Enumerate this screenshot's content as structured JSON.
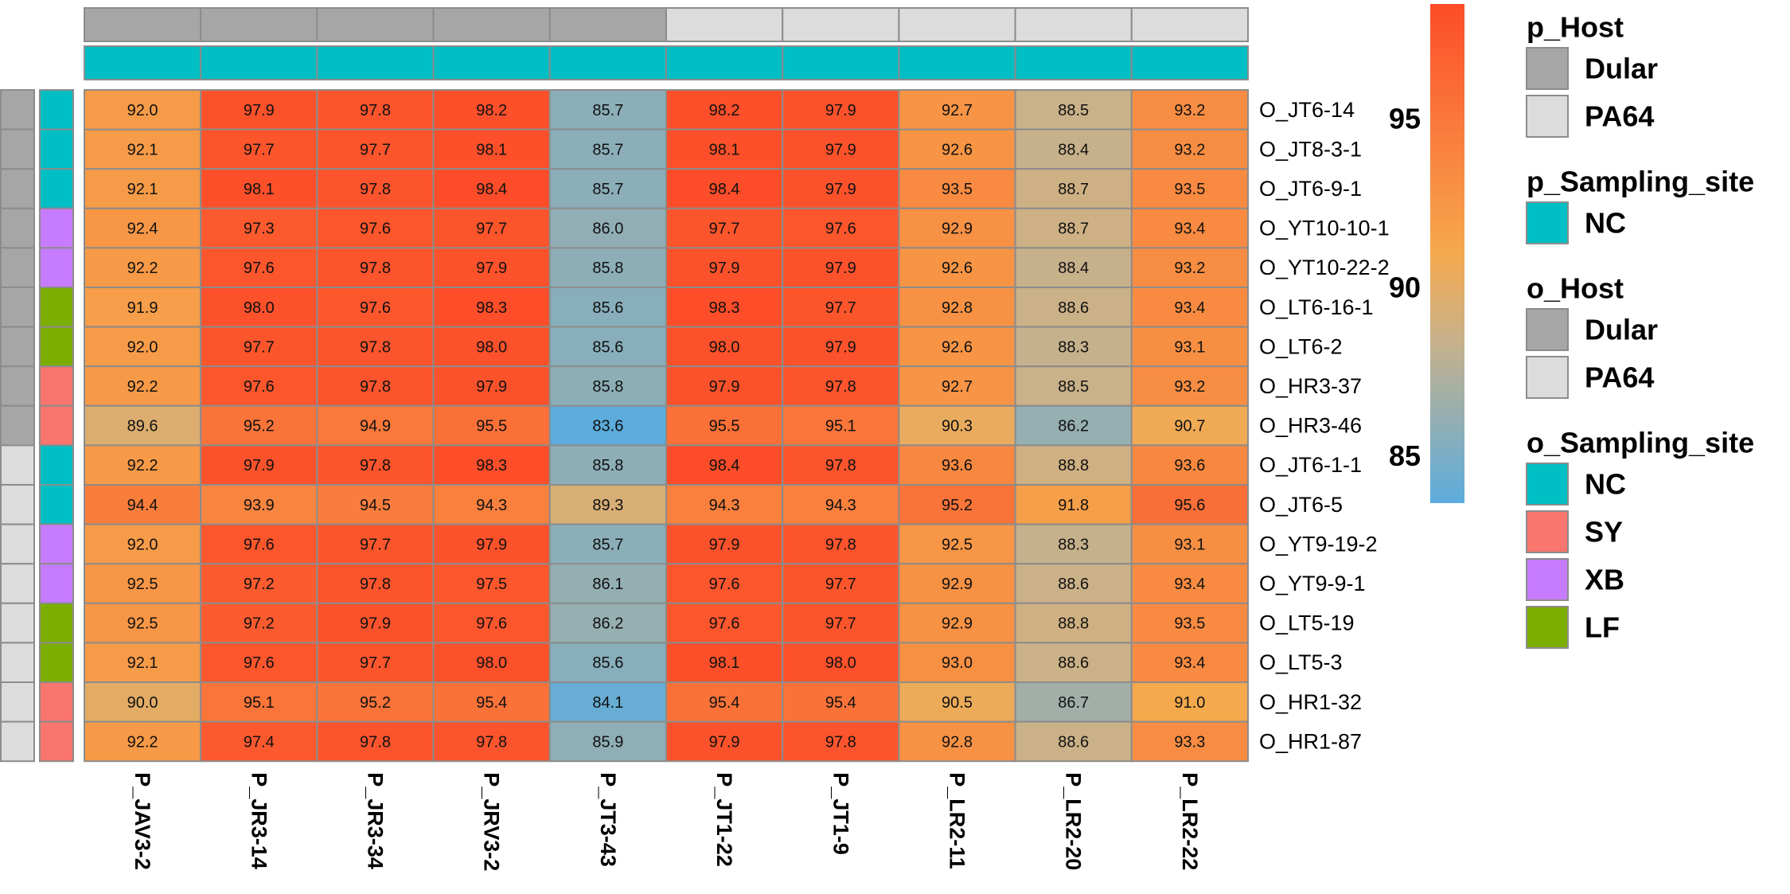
{
  "chart_data": {
    "type": "heatmap",
    "columns": [
      "P_JAV3-2",
      "P_JR3-14",
      "P_JR3-34",
      "P_JRV3-2",
      "P_JT3-43",
      "P_JT1-22",
      "P_JT1-9",
      "P_LR2-11",
      "P_LR2-20",
      "P_LR2-22"
    ],
    "rows": [
      "O_JT6-14",
      "O_JT8-3-1",
      "O_JT6-9-1",
      "O_YT10-10-1",
      "O_YT10-22-2",
      "O_LT6-16-1",
      "O_LT6-2",
      "O_HR3-37",
      "O_HR3-46",
      "O_JT6-1-1",
      "O_JT6-5",
      "O_YT9-19-2",
      "O_YT9-9-1",
      "O_LT5-19",
      "O_LT5-3",
      "O_HR1-32",
      "O_HR1-87"
    ],
    "values": [
      [
        92.0,
        97.9,
        97.8,
        98.2,
        85.7,
        98.2,
        97.9,
        92.7,
        88.5,
        93.2
      ],
      [
        92.1,
        97.7,
        97.7,
        98.1,
        85.7,
        98.1,
        97.9,
        92.6,
        88.4,
        93.2
      ],
      [
        92.1,
        98.1,
        97.8,
        98.4,
        85.7,
        98.4,
        97.9,
        93.5,
        88.7,
        93.5
      ],
      [
        92.4,
        97.3,
        97.6,
        97.7,
        86.0,
        97.7,
        97.6,
        92.9,
        88.7,
        93.4
      ],
      [
        92.2,
        97.6,
        97.8,
        97.9,
        85.8,
        97.9,
        97.9,
        92.6,
        88.4,
        93.2
      ],
      [
        91.9,
        98.0,
        97.6,
        98.3,
        85.6,
        98.3,
        97.7,
        92.8,
        88.6,
        93.4
      ],
      [
        92.0,
        97.7,
        97.8,
        98.0,
        85.6,
        98.0,
        97.9,
        92.6,
        88.3,
        93.1
      ],
      [
        92.2,
        97.6,
        97.8,
        97.9,
        85.8,
        97.9,
        97.8,
        92.7,
        88.5,
        93.2
      ],
      [
        89.6,
        95.2,
        94.9,
        95.5,
        83.6,
        95.5,
        95.1,
        90.3,
        86.2,
        90.7
      ],
      [
        92.2,
        97.9,
        97.8,
        98.3,
        85.8,
        98.4,
        97.8,
        93.6,
        88.8,
        93.6
      ],
      [
        94.4,
        93.9,
        94.5,
        94.3,
        89.3,
        94.3,
        94.3,
        95.2,
        91.8,
        95.6
      ],
      [
        92.0,
        97.6,
        97.7,
        97.9,
        85.7,
        97.9,
        97.8,
        92.5,
        88.3,
        93.1
      ],
      [
        92.5,
        97.2,
        97.8,
        97.5,
        86.1,
        97.6,
        97.7,
        92.9,
        88.6,
        93.4
      ],
      [
        92.5,
        97.2,
        97.9,
        97.6,
        86.2,
        97.6,
        97.7,
        92.9,
        88.8,
        93.5
      ],
      [
        92.1,
        97.6,
        97.7,
        98.0,
        85.6,
        98.1,
        98.0,
        93.0,
        88.6,
        93.4
      ],
      [
        90.0,
        95.1,
        95.2,
        95.4,
        84.1,
        95.4,
        95.4,
        90.5,
        86.7,
        91.0
      ],
      [
        92.2,
        97.4,
        97.8,
        97.8,
        85.9,
        97.9,
        97.8,
        92.8,
        88.6,
        93.3
      ]
    ],
    "value_range": [
      83.6,
      98.4
    ],
    "colorbar": {
      "ticks": [
        95,
        90,
        85
      ],
      "tick_labels": [
        "95",
        "90",
        "85"
      ]
    },
    "column_annotations": {
      "p_Host": [
        "Dular",
        "Dular",
        "Dular",
        "Dular",
        "Dular",
        "PA64",
        "PA64",
        "PA64",
        "PA64",
        "PA64"
      ],
      "p_Sampling_site": [
        "NC",
        "NC",
        "NC",
        "NC",
        "NC",
        "NC",
        "NC",
        "NC",
        "NC",
        "NC"
      ]
    },
    "row_annotations": {
      "o_Host": [
        "Dular",
        "Dular",
        "Dular",
        "Dular",
        "Dular",
        "Dular",
        "Dular",
        "Dular",
        "Dular",
        "PA64",
        "PA64",
        "PA64",
        "PA64",
        "PA64",
        "PA64",
        "PA64",
        "PA64"
      ],
      "o_Sampling_site": [
        "NC",
        "NC",
        "NC",
        "XB",
        "XB",
        "LF",
        "LF",
        "SY",
        "SY",
        "NC",
        "NC",
        "XB",
        "XB",
        "LF",
        "LF",
        "SY",
        "SY"
      ]
    },
    "legend": [
      {
        "title": "p_Host",
        "items": [
          {
            "label": "Dular",
            "color": "#a6a6a6"
          },
          {
            "label": "PA64",
            "color": "#dcdcdc"
          }
        ]
      },
      {
        "title": "p_Sampling_site",
        "items": [
          {
            "label": "NC",
            "color": "#00bfc4"
          }
        ]
      },
      {
        "title": "o_Host",
        "items": [
          {
            "label": "Dular",
            "color": "#a6a6a6"
          },
          {
            "label": "PA64",
            "color": "#dcdcdc"
          }
        ]
      },
      {
        "title": "o_Sampling_site",
        "items": [
          {
            "label": "NC",
            "color": "#00bfc4"
          },
          {
            "label": "SY",
            "color": "#f8766d"
          },
          {
            "label": "XB",
            "color": "#c77cff"
          },
          {
            "label": "LF",
            "color": "#7cae00"
          }
        ]
      }
    ],
    "legend_placement": "right"
  },
  "colors": {
    "Dular": "#a6a6a6",
    "PA64": "#dcdcdc",
    "NC": "#00bfc4",
    "SY": "#f8766d",
    "XB": "#c77cff",
    "LF": "#7cae00",
    "scale_low": "#5cacdd",
    "scale_mid": "#f5a94d",
    "scale_high": "#fd4c29",
    "cell_border": "#8c8c8c"
  }
}
